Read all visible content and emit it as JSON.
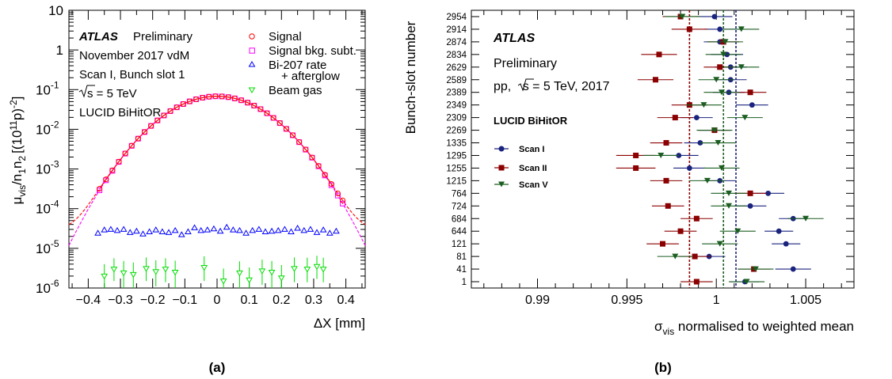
{
  "chart_data": [
    {
      "type": "scatter",
      "panel_label": "(a)",
      "xlabel": "ΔX [mm]",
      "ylabel_parts": {
        "mu": "μ",
        "vis": "vis",
        "mid": "/n",
        "one": "1",
        "n2": "n",
        "two": "2",
        "bracket": "[(10",
        "exp11": "11",
        "p": "p)",
        "expm2": "-2",
        "close": "]"
      },
      "x_range": [
        -0.46,
        0.46
      ],
      "y_range": [
        1e-06,
        10
      ],
      "y_scale": "log",
      "x_ticks": [
        -0.4,
        -0.3,
        -0.2,
        -0.1,
        0,
        0.1,
        0.2,
        0.3,
        0.4
      ],
      "x_tick_labels": [
        "−0.4",
        "−0.3",
        "−0.2",
        "−0.1",
        "0",
        "0.1",
        "0.2",
        "0.3",
        "0.4"
      ],
      "y_tick_labels": [
        {
          "base": "10",
          "exp": "-6",
          "value": 1e-06
        },
        {
          "base": "10",
          "exp": "-5",
          "value": 1e-05
        },
        {
          "base": "10",
          "exp": "-4",
          "value": 0.0001
        },
        {
          "base": "10",
          "exp": "-3",
          "value": 0.001
        },
        {
          "base": "10",
          "exp": "-2",
          "value": 0.01
        },
        {
          "base": "10",
          "exp": "-1",
          "value": 0.1
        },
        {
          "base": "",
          "exp": "",
          "text": "1",
          "value": 1
        },
        {
          "base": "",
          "exp": "",
          "text": "10",
          "value": 10
        }
      ],
      "annotations": {
        "atlas": "ATLAS",
        "preliminary": "Preliminary",
        "line2": "November 2017 vdM",
        "line3": "Scan I, Bunch slot 1",
        "sqrt_s": "s = 5 TeV",
        "line5": "LUCID BiHitOR"
      },
      "legend": [
        {
          "label": "Signal",
          "marker": "circle",
          "color": "#ff0000"
        },
        {
          "label": "Signal bkg. subt.",
          "marker": "square",
          "color": "#ff00ff"
        },
        {
          "label": "Bi-207 rate",
          "label2": "+ afterglow",
          "marker": "triangle-up",
          "color": "#0000ff"
        },
        {
          "label": "Beam gas",
          "marker": "triangle-down",
          "color": "#00dd00"
        }
      ],
      "legend_placement": "top-right",
      "gaussian_fit": {
        "amplitude": 0.068,
        "mean": 0.0,
        "sigma": 0.1105,
        "constant": 2.8e-05,
        "color_signal": "#ff0000",
        "color_subtracted": "#ff00ff"
      },
      "signal_x": [
        -0.365,
        -0.345,
        -0.325,
        -0.305,
        -0.285,
        -0.265,
        -0.245,
        -0.225,
        -0.205,
        -0.185,
        -0.165,
        -0.145,
        -0.125,
        -0.105,
        -0.085,
        -0.065,
        -0.045,
        -0.025,
        -0.005,
        0.015,
        0.035,
        0.055,
        0.075,
        0.095,
        0.115,
        0.135,
        0.155,
        0.175,
        0.195,
        0.215,
        0.235,
        0.255,
        0.275,
        0.295,
        0.315,
        0.335,
        0.355,
        0.375,
        0.39
      ],
      "bi207": {
        "x": [
          -0.37,
          -0.35,
          -0.33,
          -0.31,
          -0.29,
          -0.27,
          -0.25,
          -0.23,
          -0.21,
          -0.19,
          -0.17,
          -0.15,
          -0.13,
          -0.11,
          -0.09,
          -0.07,
          -0.05,
          -0.03,
          -0.01,
          0.01,
          0.03,
          0.05,
          0.07,
          0.09,
          0.11,
          0.13,
          0.15,
          0.17,
          0.19,
          0.21,
          0.23,
          0.25,
          0.27,
          0.29,
          0.31,
          0.33,
          0.35,
          0.37
        ],
        "y": [
          2.4e-05,
          2.9e-05,
          3e-05,
          2.8e-05,
          3e-05,
          2.5e-05,
          2.7e-05,
          2.3e-05,
          2.6e-05,
          2.9e-05,
          2.6e-05,
          2.5e-05,
          2.8e-05,
          2.2e-05,
          2.6e-05,
          3.3e-05,
          2.8e-05,
          2.9e-05,
          3.1e-05,
          2.7e-05,
          3.4e-05,
          2.9e-05,
          2.8e-05,
          2.4e-05,
          2.8e-05,
          3e-05,
          2.6e-05,
          2.7e-05,
          2.8e-05,
          3e-05,
          2.6e-05,
          3.2e-05,
          2.8e-05,
          3e-05,
          2.5e-05,
          2.9e-05,
          2.4e-05,
          2.7e-05
        ]
      },
      "beam_gas": {
        "x": [
          -0.35,
          -0.32,
          -0.29,
          -0.26,
          -0.22,
          -0.19,
          -0.16,
          -0.13,
          -0.04,
          0.02,
          0.07,
          0.1,
          0.14,
          0.17,
          0.2,
          0.24,
          0.28,
          0.31,
          0.33
        ],
        "y": [
          2e-06,
          3e-06,
          2.4e-06,
          2.2e-06,
          3.1e-06,
          2.6e-06,
          3e-06,
          2.5e-06,
          3.3e-06,
          1.5e-06,
          2.4e-06,
          1.6e-06,
          2.7e-06,
          2.5e-06,
          1.8e-06,
          3.1e-06,
          3e-06,
          3.5e-06,
          3e-06
        ],
        "err_lo": [
          1.3e-06,
          1.5e-06,
          1.5e-06,
          1.3e-06,
          1.6e-06,
          1.5e-06,
          1.6e-06,
          1.5e-06,
          1.8e-06,
          1e-06,
          1.4e-06,
          1e-06,
          1.5e-06,
          1.5e-06,
          1.2e-06,
          1.7e-06,
          1.6e-06,
          1.8e-06,
          1.6e-06
        ],
        "err_hi": [
          2e-06,
          2.6e-06,
          2.4e-06,
          2.2e-06,
          2.8e-06,
          2.4e-06,
          2.6e-06,
          2.4e-06,
          3e-06,
          1.6e-06,
          2.3e-06,
          1.7e-06,
          2.5e-06,
          2.3e-06,
          2e-06,
          2.8e-06,
          2.8e-06,
          3e-06,
          2.8e-06
        ]
      }
    },
    {
      "type": "scatter",
      "panel_label": "(b)",
      "xlabel_main": "σ",
      "xlabel_sub": "vis",
      "xlabel_rest": " normalised to weighted mean",
      "ylabel": "Bunch-slot number",
      "x_range": [
        0.9863,
        1.0077
      ],
      "x_ticks": [
        0.99,
        0.995,
        1.0,
        1.005
      ],
      "x_tick_labels": [
        "0.99",
        "0.995",
        "1",
        "1.005"
      ],
      "categories": [
        "1",
        "41",
        "81",
        "121",
        "644",
        "684",
        "724",
        "764",
        "1215",
        "1255",
        "1295",
        "1335",
        "2269",
        "2309",
        "2349",
        "2389",
        "2589",
        "2629",
        "2834",
        "2874",
        "2914",
        "2954"
      ],
      "annotations": {
        "atlas": "ATLAS",
        "preliminary": "Preliminary",
        "energy": "pp, ",
        "energy_rest": "s = 5 TeV, 2017",
        "detector": "LUCID BiHitOR"
      },
      "legend_placement": "middle-left",
      "series": [
        {
          "name": "Scan I",
          "marker": "circle",
          "color": "#1a237e",
          "mean": 1.0011,
          "values": [
            1.0016,
            1.0043,
            0.9996,
            1.0039,
            1.0035,
            1.0043,
            1.0019,
            1.0029,
            1.0002,
            0.9985,
            0.9979,
            0.9991,
            0.9999,
            0.9989,
            1.002,
            1.0007,
            1.0008,
            1.0008,
            1.0006,
            1.0002,
            1.0002,
            0.9999
          ],
          "errors": [
            0.0008,
            0.001,
            0.0009,
            0.0008,
            0.0008,
            0.0008,
            0.0009,
            0.0009,
            0.0009,
            0.0009,
            0.0011,
            0.0009,
            0.0009,
            0.0009,
            0.0009,
            0.0009,
            0.0009,
            0.0009,
            0.0009,
            0.0009,
            0.0009,
            0.001
          ]
        },
        {
          "name": "Scan II",
          "marker": "square",
          "color": "#8b0000",
          "mean": 0.9985,
          "values": [
            0.9989,
            1.0021,
            0.9988,
            0.997,
            0.998,
            0.9989,
            0.9973,
            1.0019,
            0.9972,
            0.9955,
            0.9955,
            0.9972,
            0.9999,
            0.9977,
            0.9985,
            1.0019,
            0.9966,
            1.0002,
            0.9968,
            1.0004,
            0.9985,
            0.998
          ],
          "errors": [
            0.0009,
            0.0009,
            0.0009,
            0.0009,
            0.0009,
            0.0009,
            0.0009,
            0.0009,
            0.0009,
            0.0011,
            0.0011,
            0.0009,
            0.0009,
            0.001,
            0.001,
            0.0009,
            0.001,
            0.0009,
            0.001,
            0.0009,
            0.001,
            0.001
          ]
        },
        {
          "name": "Scan V",
          "marker": "triangle-down",
          "color": "#1b5e20",
          "mean": 1.0004,
          "values": [
            1.0017,
            1.0022,
            0.9977,
            1.0002,
            1.0012,
            1.005,
            1.0007,
            1.0007,
            0.9995,
            1.0003,
            0.9969,
            1.0001,
            0.9999,
            1.0016,
            0.9993,
            1.0003,
            1.0,
            1.0014,
            1.0004,
            1.0005,
            1.0014,
            0.9981
          ],
          "errors": [
            0.001,
            0.001,
            0.001,
            0.001,
            0.001,
            0.001,
            0.001,
            0.001,
            0.001,
            0.001,
            0.001,
            0.001,
            0.001,
            0.001,
            0.001,
            0.001,
            0.001,
            0.001,
            0.001,
            0.001,
            0.001,
            0.001
          ]
        }
      ]
    }
  ]
}
